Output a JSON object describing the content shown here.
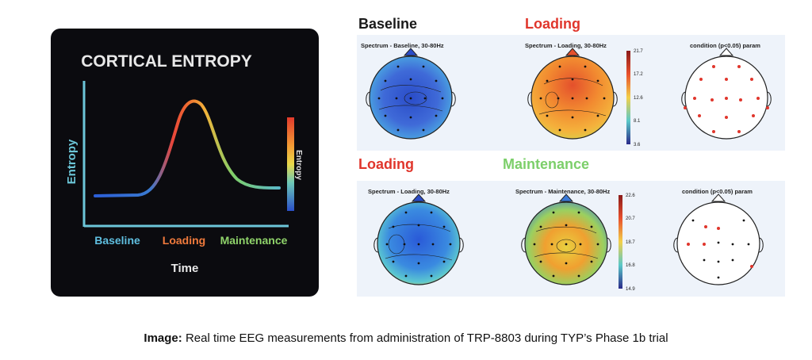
{
  "left_panel": {
    "title": "CORTICAL ENTROPY",
    "y_label": "Entropy",
    "x_label": "Time",
    "phases": [
      "Baseline",
      "Loading",
      "Maintenance"
    ],
    "colorbar_label": "Entropy",
    "colors": {
      "baseline": "#5fbfe0",
      "loading": "#f07a3c",
      "maintenance": "#8fd36a",
      "axis": "#6cc6d8"
    }
  },
  "top_row": {
    "left_heading": "Baseline",
    "right_heading": "Loading",
    "maps": [
      {
        "title": "Spectrum - Baseline, 30-80Hz"
      },
      {
        "title": "Spectrum - Loading, 30-80Hz",
        "colorbar_ticks": [
          "21.7",
          "17.2",
          "12.6",
          "8.1",
          "3.6"
        ]
      },
      {
        "title": "condition (p<0.05) param"
      }
    ]
  },
  "bottom_row": {
    "left_heading": "Loading",
    "right_heading": "Maintenance",
    "maps": [
      {
        "title": "Spectrum - Loading, 30-80Hz"
      },
      {
        "title": "Spectrum - Maintenance, 30-80Hz",
        "colorbar_ticks": [
          "22.6",
          "20.7",
          "18.7",
          "16.8",
          "14.9"
        ]
      },
      {
        "title": "condition (p<0.05) param"
      }
    ]
  },
  "heading_colors": {
    "baseline": "#1a1a1a",
    "loading": "#e0362c",
    "maintenance": "#7ccf6a"
  },
  "caption": {
    "label": "Image:",
    "text": " Real time EEG measurements from administration of TRP-8803 during TYP’s Phase 1b trial"
  }
}
